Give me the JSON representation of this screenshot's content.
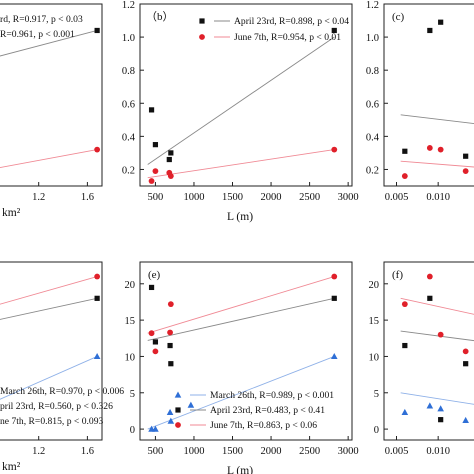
{
  "chart_data": [
    {
      "id": "a",
      "panel_label": "",
      "type": "scatter",
      "xlabel": "km²",
      "ylabel": "",
      "xticks": [
        "1.2",
        "1.6"
      ],
      "xlim": [
        0.8,
        1.72
      ],
      "ylim": [
        0.1,
        1.2
      ],
      "yticks": [],
      "series": [
        {
          "name": "April 23rd",
          "marker": "square",
          "color": "#111111",
          "stats": "R=0.917, p < 0.03",
          "x": [
            1.68
          ],
          "y": [
            1.04
          ],
          "fit": [
            [
              0.8,
              0.87
            ],
            [
              1.68,
              1.04
            ]
          ]
        },
        {
          "name": "June 7th",
          "marker": "circle",
          "color": "#e0202a",
          "stats": "R=0.961, p < 0.001",
          "x": [
            1.68
          ],
          "y": [
            0.32
          ],
          "fit": [
            [
              0.8,
              0.2
            ],
            [
              1.68,
              0.32
            ]
          ]
        }
      ],
      "legend": [
        "rd, R=0.917, p < 0.03",
        "R=0.961, p < 0.001"
      ]
    },
    {
      "id": "b",
      "panel_label": "（b）",
      "type": "scatter",
      "xlabel": "L (m)",
      "ylabel": "",
      "xticks": [
        "500",
        "1000",
        "1500",
        "2000",
        "2500",
        "3000"
      ],
      "xlim": [
        300,
        3050
      ],
      "ylim": [
        0.1,
        1.2
      ],
      "yticks": [
        "0.2",
        "0.4",
        "0.6",
        "0.8",
        "1.0",
        "1.2"
      ],
      "series": [
        {
          "name": "April 23rd",
          "marker": "square",
          "color": "#111111",
          "stats": "R=0.898, p < 0.04",
          "x": [
            450,
            500,
            680,
            700,
            2820
          ],
          "y": [
            0.56,
            0.35,
            0.26,
            0.3,
            1.04
          ],
          "fit": [
            [
              400,
              0.23
            ],
            [
              2820,
              1.0
            ]
          ]
        },
        {
          "name": "June 7th",
          "marker": "circle",
          "color": "#e0202a",
          "stats": "R=0.954, p < 0.01",
          "x": [
            450,
            500,
            680,
            700,
            2820
          ],
          "y": [
            0.13,
            0.19,
            0.18,
            0.16,
            0.32
          ],
          "fit": [
            [
              400,
              0.15
            ],
            [
              2820,
              0.32
            ]
          ]
        }
      ],
      "legend": [
        "April 23rd, R=0.898, p < 0.04",
        "June 7th, R=0.954, p < 0.01"
      ]
    },
    {
      "id": "c",
      "panel_label": "(c)",
      "type": "scatter",
      "xlabel": "",
      "ylabel": "",
      "xticks": [
        "0.005",
        "0.010",
        "0.01"
      ],
      "xlim": [
        0.0035,
        0.0155
      ],
      "ylim": [
        0.1,
        1.2
      ],
      "yticks": [
        "0.2",
        "0.4",
        "0.6",
        "0.8",
        "1.0",
        "1.2"
      ],
      "series": [
        {
          "name": "",
          "marker": "square",
          "color": "#111111",
          "x": [
            0.006,
            0.009,
            0.0103,
            0.0133
          ],
          "y": [
            0.31,
            1.04,
            1.09,
            0.28
          ],
          "fit": [
            [
              0.0055,
              0.53
            ],
            [
              0.0155,
              0.47
            ]
          ]
        },
        {
          "name": "",
          "marker": "circle",
          "color": "#e0202a",
          "x": [
            0.006,
            0.009,
            0.0103,
            0.0133
          ],
          "y": [
            0.16,
            0.33,
            0.32,
            0.19
          ],
          "fit": [
            [
              0.0055,
              0.25
            ],
            [
              0.0155,
              0.21
            ]
          ]
        }
      ]
    },
    {
      "id": "d",
      "panel_label": "",
      "type": "scatter",
      "xlabel": "km²",
      "ylabel": "",
      "xticks": [
        "1.2",
        "1.6"
      ],
      "xlim": [
        0.8,
        1.72
      ],
      "ylim": [
        -1.5,
        23
      ],
      "yticks": [],
      "series": [
        {
          "name": "March 26th",
          "marker": "triangle",
          "color": "#2f6fd6",
          "stats": "R=0.970, p < 0.006",
          "x": [
            1.68
          ],
          "y": [
            10
          ],
          "fit": [
            [
              0.8,
              3.5
            ],
            [
              1.68,
              10
            ]
          ]
        },
        {
          "name": "April 23rd",
          "marker": "square",
          "color": "#111111",
          "stats": "R=0.560, p < 0.326",
          "x": [
            1.68
          ],
          "y": [
            18
          ],
          "fit": [
            [
              0.8,
              14.8
            ],
            [
              1.68,
              18
            ]
          ]
        },
        {
          "name": "June 7th",
          "marker": "circle",
          "color": "#e0202a",
          "stats": "R=0.815, p < 0.093",
          "x": [
            1.68
          ],
          "y": [
            21
          ],
          "fit": [
            [
              0.8,
              16.8
            ],
            [
              1.68,
              21
            ]
          ]
        }
      ],
      "legend": [
        "March 26th, R=0.970, p < 0.006",
        "pril 23rd, R=0.560, p < 0.326",
        "ne 7th, R=0.815, p < 0.093"
      ]
    },
    {
      "id": "e",
      "panel_label": "(e)",
      "type": "scatter",
      "xlabel": "L (m)",
      "ylabel": "",
      "xticks": [
        "500",
        "1000",
        "1500",
        "2000",
        "2500",
        "3000"
      ],
      "xlim": [
        300,
        3050
      ],
      "ylim": [
        -1.5,
        23
      ],
      "yticks": [
        "0",
        "5",
        "10",
        "15",
        "20"
      ],
      "series": [
        {
          "name": "March 26th",
          "marker": "triangle",
          "color": "#2f6fd6",
          "stats": "R=0.989, p < 0.001",
          "x": [
            450,
            500,
            690,
            700,
            960,
            2820
          ],
          "y": [
            0,
            0,
            2.3,
            1.1,
            3.3,
            10
          ],
          "fit": [
            [
              400,
              0
            ],
            [
              2820,
              10
            ]
          ]
        },
        {
          "name": "April 23rd",
          "marker": "square",
          "color": "#111111",
          "stats": "R=0.483, p < 0.41",
          "x": [
            450,
            500,
            690,
            700,
            2820
          ],
          "y": [
            19.5,
            12,
            11.5,
            9,
            18
          ],
          "fit": [
            [
              400,
              12.2
            ],
            [
              2820,
              18
            ]
          ]
        },
        {
          "name": "June 7th",
          "marker": "circle",
          "color": "#e0202a",
          "stats": "R=0.863, p < 0.06",
          "x": [
            450,
            500,
            690,
            700,
            2820
          ],
          "y": [
            13.2,
            10.7,
            13.3,
            17.2,
            21
          ],
          "fit": [
            [
              400,
              13.2
            ],
            [
              2820,
              21
            ]
          ]
        }
      ],
      "legend": [
        "March 26th, R=0.989, p < 0.001",
        "April 23rd, R=0.483, p < 0.41",
        "June 7th, R=0.863, p < 0.06"
      ]
    },
    {
      "id": "f",
      "panel_label": "(f)",
      "type": "scatter",
      "xlabel": "",
      "ylabel": "",
      "xticks": [
        "0.005",
        "0.010"
      ],
      "xlim": [
        0.0035,
        0.0155
      ],
      "ylim": [
        -1.5,
        23
      ],
      "yticks": [
        "0",
        "5",
        "10",
        "15",
        "20"
      ],
      "series": [
        {
          "name": "",
          "marker": "triangle",
          "color": "#2f6fd6",
          "x": [
            0.006,
            0.009,
            0.0103,
            0.0133
          ],
          "y": [
            2.3,
            3.2,
            2.8,
            1.2
          ],
          "fit": [
            [
              0.0055,
              5
            ],
            [
              0.0155,
              3.2
            ]
          ]
        },
        {
          "name": "",
          "marker": "square",
          "color": "#111111",
          "x": [
            0.006,
            0.009,
            0.0103,
            0.0133
          ],
          "y": [
            11.5,
            18,
            1.3,
            9
          ],
          "fit": [
            [
              0.0055,
              13.5
            ],
            [
              0.0155,
              12
            ]
          ]
        },
        {
          "name": "",
          "marker": "circle",
          "color": "#e0202a",
          "x": [
            0.006,
            0.009,
            0.0103,
            0.0133
          ],
          "y": [
            17.2,
            21,
            13,
            10.7
          ],
          "fit": [
            [
              0.0055,
              18
            ],
            [
              0.0155,
              15.5
            ]
          ]
        }
      ]
    }
  ]
}
